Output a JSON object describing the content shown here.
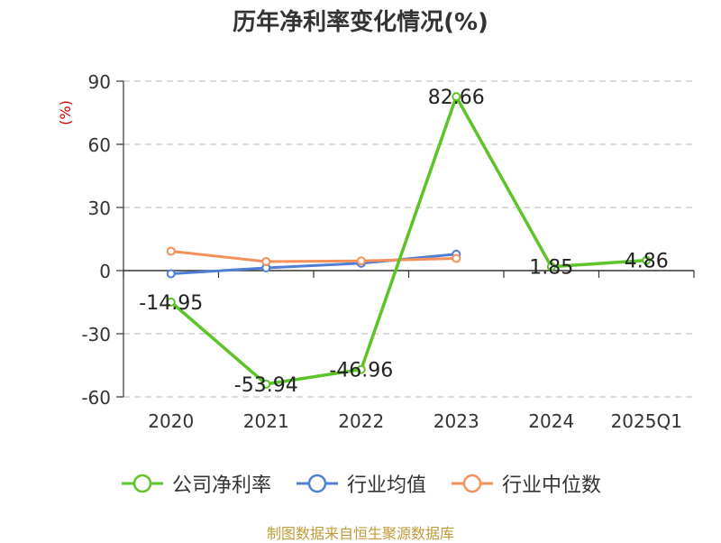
{
  "chart_data": {
    "type": "line",
    "title": "历年净利率变化情况(%)",
    "ylabel": "(%)",
    "categories": [
      "2020",
      "2021",
      "2022",
      "2023",
      "2024",
      "2025Q1"
    ],
    "ylim": [
      -60,
      90
    ],
    "yticks": [
      90,
      60,
      30,
      0,
      -30,
      -60
    ],
    "grid": true,
    "legend_position": "bottom",
    "series": [
      {
        "name": "公司净利率",
        "color": "#5cc426",
        "values": [
          -14.95,
          -53.94,
          -46.96,
          82.66,
          1.85,
          4.86
        ],
        "labels": [
          "-14.95",
          "-53.94",
          "-46.96",
          "82.66",
          "1.85",
          "4.86"
        ]
      },
      {
        "name": "行业均值",
        "color": "#4f7fd3",
        "values": [
          -1.5,
          1.3,
          3.5,
          7.8,
          null,
          null
        ]
      },
      {
        "name": "行业中位数",
        "color": "#f5905a",
        "values": [
          9.2,
          4.3,
          4.6,
          5.8,
          null,
          null
        ]
      }
    ]
  },
  "source": "制图数据来自恒生聚源数据库"
}
